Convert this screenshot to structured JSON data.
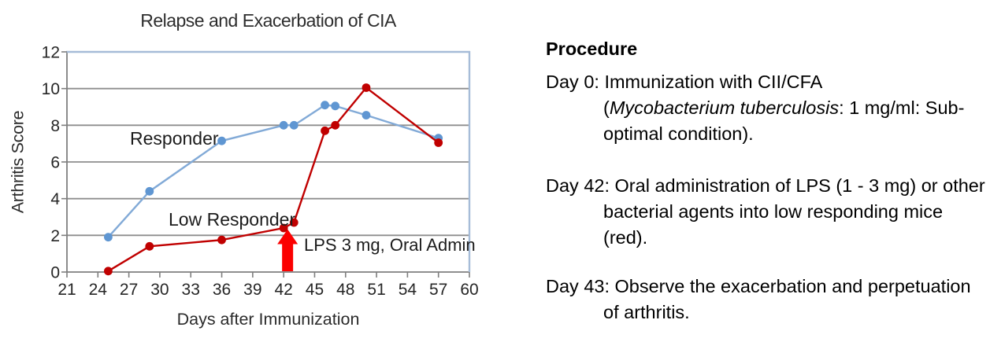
{
  "chart_data": {
    "type": "line",
    "title": "Relapse and Exacerbation of CIA",
    "xlabel": "Days after Immunization",
    "ylabel": "Arthritis Score",
    "xlim": [
      21,
      60
    ],
    "ylim": [
      0,
      12
    ],
    "xticks": [
      21,
      24,
      27,
      30,
      33,
      36,
      39,
      42,
      45,
      48,
      51,
      54,
      57,
      60
    ],
    "yticks": [
      0,
      2,
      4,
      6,
      8,
      10,
      12
    ],
    "grid": "horizontal",
    "legend_position": "inline-labels",
    "x": [
      25,
      29,
      36,
      42,
      43,
      46,
      47,
      50,
      57
    ],
    "series": [
      {
        "name": "Responder",
        "line_color": "#82AAD7",
        "marker_color": "#5F96D2",
        "values": [
          1.9,
          4.4,
          7.15,
          8.0,
          8.0,
          9.1,
          9.05,
          8.55,
          7.3
        ]
      },
      {
        "name": "Low Responder",
        "line_color": "#C00000",
        "marker_color": "#C00000",
        "values": [
          0.05,
          1.4,
          1.75,
          2.4,
          2.7,
          7.7,
          8.0,
          10.05,
          7.05
        ]
      }
    ],
    "annotations": {
      "responder_label": "Responder",
      "low_responder_label": "Low Responder",
      "arrow_label": "LPS 3 mg, Oral Admin",
      "arrow_x": 42,
      "arrow_color": "#FB0000"
    },
    "colors": {
      "gridline": "#8E8E8E",
      "axis": "#7F7F7F",
      "plot_border": "#A6BCD8"
    }
  },
  "procedure": {
    "heading": "Procedure",
    "items": [
      {
        "line1": "Day 0: Immunization with CII/CFA",
        "line2_pre": "(",
        "line2_italic": "Mycobacterium tuberculosis",
        "line2_post": ": 1 mg/ml: Sub-",
        "line3": "optimal condition)."
      },
      {
        "line1": "Day 42: Oral administration of LPS (1 - 3 mg) or other",
        "line2": "bacterial agents into low responding mice",
        "line3": "(red)."
      },
      {
        "line1": "Day 43: Observe the exacerbation and perpetuation",
        "line2": "of arthritis."
      }
    ]
  }
}
